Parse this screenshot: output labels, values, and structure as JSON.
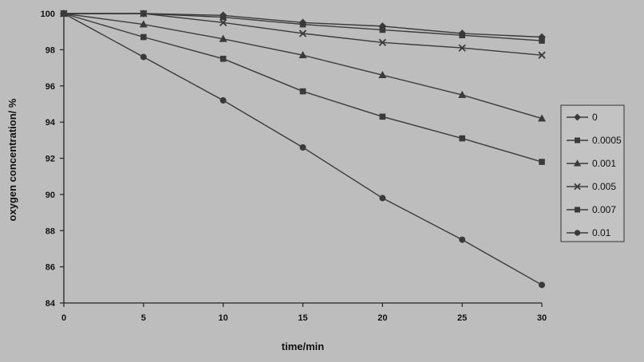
{
  "chart_data": {
    "type": "line",
    "title": "",
    "xlabel": "time/min",
    "ylabel": "oxygen concentration/ %",
    "x": [
      0,
      5,
      10,
      15,
      20,
      25,
      30
    ],
    "xlim": [
      0,
      30
    ],
    "ylim": [
      84,
      100
    ],
    "xticks": [
      "0",
      "5",
      "10",
      "15",
      "20",
      "25",
      "30"
    ],
    "yticks": [
      "84",
      "86",
      "88",
      "90",
      "92",
      "94",
      "96",
      "98",
      "100"
    ],
    "grid": false,
    "legend_position": "right",
    "series": [
      {
        "name": "0",
        "marker": "diamond",
        "values": [
          100,
          100,
          99.9,
          99.5,
          99.3,
          98.9,
          98.7
        ]
      },
      {
        "name": "0.0005",
        "marker": "square",
        "values": [
          100,
          100,
          99.8,
          99.4,
          99.1,
          98.8,
          98.5
        ]
      },
      {
        "name": "0.001",
        "marker": "triangle",
        "values": [
          100,
          99.4,
          98.6,
          97.7,
          96.6,
          95.5,
          94.2
        ]
      },
      {
        "name": "0.005",
        "marker": "x",
        "values": [
          100,
          100,
          99.5,
          98.9,
          98.4,
          98.1,
          97.7
        ]
      },
      {
        "name": "0.007",
        "marker": "square",
        "values": [
          100,
          98.7,
          97.5,
          95.7,
          94.3,
          93.1,
          91.8
        ]
      },
      {
        "name": "0.01",
        "marker": "circle",
        "values": [
          100,
          97.6,
          95.2,
          92.6,
          89.8,
          87.5,
          85.0
        ]
      }
    ],
    "colors": {
      "line": "#3a3a3a",
      "axis": "#222222",
      "background": "#bdbdbd"
    }
  }
}
